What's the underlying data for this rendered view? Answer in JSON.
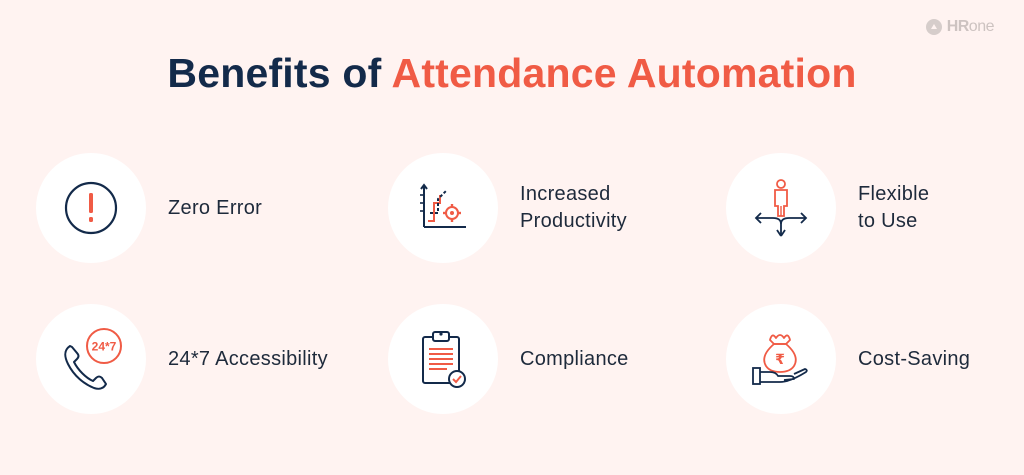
{
  "logo": {
    "bold": "HR",
    "light": "one"
  },
  "title": {
    "lead": "Benefits of",
    "accent": "Attendance Automation"
  },
  "colors": {
    "navy": "#132a4a",
    "accent": "#f05b45",
    "background": "#fff3f1",
    "circle": "#ffffff"
  },
  "benefits": [
    {
      "label": "Zero Error",
      "icon": "exclamation-icon"
    },
    {
      "label": "Increased\nProductivity",
      "icon": "productivity-chart-icon"
    },
    {
      "label": "Flexible\nto Use",
      "icon": "person-directions-icon"
    },
    {
      "label": "24*7 Accessibility",
      "icon": "phone-24x7-icon",
      "icon_text": "24*7"
    },
    {
      "label": "Compliance",
      "icon": "clipboard-check-icon"
    },
    {
      "label": "Cost-Saving",
      "icon": "money-bag-hand-icon",
      "icon_text": "₹"
    }
  ]
}
